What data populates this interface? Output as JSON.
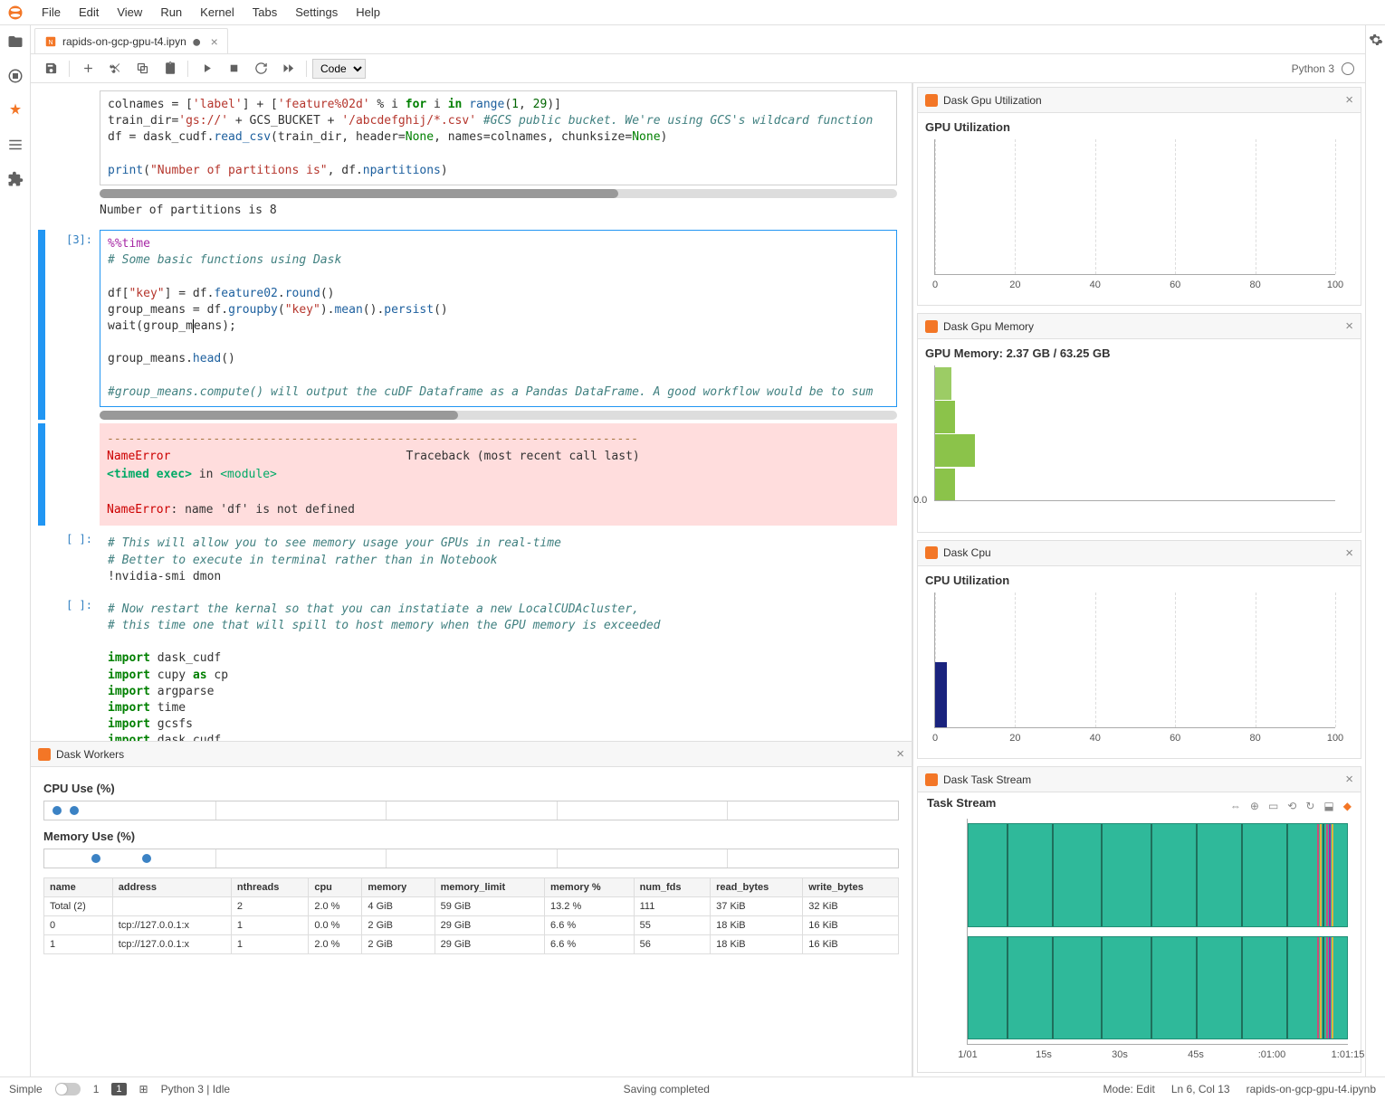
{
  "menu": {
    "items": [
      "File",
      "Edit",
      "View",
      "Run",
      "Kernel",
      "Tabs",
      "Settings",
      "Help"
    ]
  },
  "tab": {
    "filename": "rapids-on-gcp-gpu-t4.ipyn",
    "dirty": true
  },
  "toolbar": {
    "cell_type": "Code",
    "kernel": "Python 3"
  },
  "cells": {
    "c0": {
      "prompt": "",
      "scrollbar_thumb_pct": 65,
      "html": "colnames = [<span class='tok-s'>'label'</span>] + [<span class='tok-s'>'feature%02d'</span> % i <span class='tok-k'>for</span> i <span class='tok-k'>in</span> <span class='tok-n'>range</span>(<span class='tok-num'>1</span>, <span class='tok-num'>29</span>)]\ntrain_dir=<span class='tok-s'>'gs://'</span> + GCS_BUCKET + <span class='tok-s'>'/abcdefghij/*.csv'</span> <span class='tok-c'>#GCS public bucket. We're using GCS's wildcard function</span>\ndf = dask_cudf.<span class='tok-n'>read_csv</span>(train_dir, header=<span class='tok-b'>None</span>, names=colnames, chunksize=<span class='tok-b'>None</span>)\n\n<span class='tok-n'>print</span>(<span class='tok-s'>\"Number of partitions is\"</span>, df.<span class='tok-n'>npartitions</span>)",
      "output": "Number of partitions is 8"
    },
    "c1": {
      "prompt": "[3]:",
      "scrollbar_thumb_pct": 45,
      "html": "<span class='tok-mg'>%%time</span>\n<span class='tok-c'># Some basic functions using Dask</span>\n\ndf[<span class='tok-s'>\"key\"</span>] = df.<span class='tok-n'>feature02</span>.<span class='tok-n'>round</span>()\ngroup_means = df.<span class='tok-n'>groupby</span>(<span class='tok-s'>\"key\"</span>).<span class='tok-n'>mean</span>().<span class='tok-n'>persist</span>()\nwait(group_m<span style='border-left:1px solid #000;'>e</span>ans);\n\ngroup_means.<span class='tok-n'>head</span>()\n\n<span class='tok-c'>#group_means.compute() will output the cuDF Dataframe as a Pandas DataFrame. A good workflow would be to sum</span>\n"
    },
    "err": {
      "dashes": "---------------------------------------------------------------------------",
      "line1a": "NameError",
      "line1b": "Traceback (most recent call last)",
      "line2a": "<timed exec>",
      "line2b": " in ",
      "line2c": "<module>",
      "line3a": "NameError",
      "line3b": ": name 'df' is not defined"
    },
    "c2": {
      "prompt": "[ ]:",
      "html": "<span class='tok-c'># This will allow you to see memory usage your GPUs in real-time</span>\n<span class='tok-c'># Better to execute in terminal rather than in Notebook</span>\n!nvidia-smi dmon"
    },
    "c3": {
      "prompt": "[ ]:",
      "html": "<span class='tok-c'># Now restart the kernal so that you can instatiate a new LocalCUDAcluster,</span>\n<span class='tok-c'># this time one that will spill to host memory when the GPU memory is exceeded</span>\n\n<span class='tok-k'>import</span> dask_cudf\n<span class='tok-k'>import</span> cupy <span class='tok-k'>as</span> cp\n<span class='tok-k'>import</span> argparse\n<span class='tok-k'>import</span> time\n<span class='tok-k'>import</span> gcsfs\n<span class='tok-k'>import</span> dask_cudf\n<span class='tok-k'>import</span> os, json\n<span class='tok-k'>import</span> subprocess\n<span class='tok-k'>from</span> dask_cuda <span class='tok-k'>import</span> LocalCUDACluster"
    }
  },
  "panels": {
    "gpu_util": {
      "tab": "Dask Gpu Utilization",
      "title": "GPU Utilization",
      "xticks": [
        "0",
        "20",
        "40",
        "60",
        "80",
        "100"
      ]
    },
    "gpu_mem": {
      "tab": "Dask Gpu Memory",
      "title_prefix": "GPU Memory: ",
      "title_value": "2.37 GB / 63.25 GB",
      "bars": [
        {
          "w": 5,
          "color": "#8bc34a"
        },
        {
          "w": 10,
          "color": "#8bc34a"
        },
        {
          "w": 5,
          "color": "#8bc34a"
        },
        {
          "w": 4,
          "color": "#9ccc65"
        }
      ],
      "ylabel": "0.0"
    },
    "cpu": {
      "tab": "Dask Cpu",
      "title": "CPU Utilization",
      "bars": [
        {
          "w": 3,
          "color": "#1a237e"
        }
      ],
      "xticks": [
        "0",
        "20",
        "40",
        "60",
        "80",
        "100"
      ]
    },
    "task_stream": {
      "tab": "Dask Task Stream",
      "title": "Task Stream",
      "xticks": [
        "1/01",
        "15s",
        "30s",
        "45s",
        ":01:00",
        "1:01:15"
      ],
      "stripes": [
        {
          "x": 10,
          "c": "#1f6f5c"
        },
        {
          "x": 22,
          "c": "#1f6f5c"
        },
        {
          "x": 35,
          "c": "#1f6f5c"
        },
        {
          "x": 48,
          "c": "#1f6f5c"
        },
        {
          "x": 60,
          "c": "#1f6f5c"
        },
        {
          "x": 72,
          "c": "#1f6f5c"
        },
        {
          "x": 84,
          "c": "#1f6f5c"
        },
        {
          "x": 92,
          "c": "#c94f7c"
        },
        {
          "x": 92.8,
          "c": "#e3b23c"
        },
        {
          "x": 93.6,
          "c": "#1f6f5c"
        },
        {
          "x": 94.4,
          "c": "#c94f7c"
        },
        {
          "x": 95.2,
          "c": "#9c27b0"
        },
        {
          "x": 96,
          "c": "#e3b23c"
        }
      ]
    }
  },
  "workers": {
    "tab": "Dask Workers",
    "cpu_title": "CPU Use (%)",
    "mem_title": "Memory Use (%)",
    "cpu_dots": [
      1.5,
      3.5
    ],
    "mem_dots": [
      6,
      12
    ],
    "columns": [
      "name",
      "address",
      "nthreads",
      "cpu",
      "memory",
      "memory_limit",
      "memory %",
      "num_fds",
      "read_bytes",
      "write_bytes"
    ],
    "rows": [
      [
        "Total (2)",
        "",
        "2",
        "2.0 %",
        "4 GiB",
        "59 GiB",
        "13.2 %",
        "111",
        "37 KiB",
        "32 KiB"
      ],
      [
        "0",
        "tcp://127.0.0.1:x",
        "1",
        "0.0 %",
        "2 GiB",
        "29 GiB",
        "6.6 %",
        "55",
        "18 KiB",
        "16 KiB"
      ],
      [
        "1",
        "tcp://127.0.0.1:x",
        "1",
        "2.0 %",
        "2 GiB",
        "29 GiB",
        "6.6 %",
        "56",
        "18 KiB",
        "16 KiB"
      ]
    ]
  },
  "statusbar": {
    "simple": "Simple",
    "nums": [
      "1",
      "1"
    ],
    "kernel": "Python 3 | Idle",
    "center": "Saving completed",
    "mode": "Mode: Edit",
    "pos": "Ln 6, Col 13",
    "file": "rapids-on-gcp-gpu-t4.ipynb"
  },
  "colors": {
    "accent": "#f37626"
  }
}
